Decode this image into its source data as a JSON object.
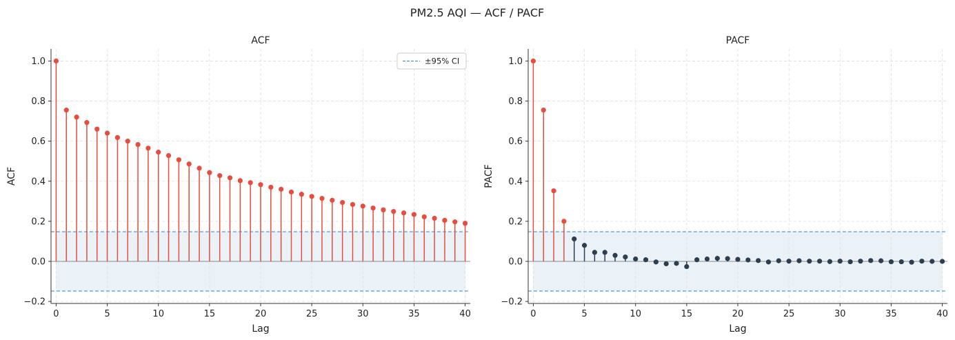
{
  "figure": {
    "suptitle": "PM2.5 AQI — ACF / PACF"
  },
  "colors": {
    "significant": "#e74c3c",
    "insignificant": "#2c3e50",
    "ci_line": "#2e86c1",
    "ci_fill": "#d6e6ef",
    "grid": "#dddddd",
    "axis": "#333333"
  },
  "chart_data": [
    {
      "type": "stem",
      "title": "ACF",
      "xlabel": "Lag",
      "ylabel": "ACF",
      "xlim": [
        -0.5,
        40.5
      ],
      "ylim": [
        -0.21,
        1.06
      ],
      "xticks": [
        "0",
        "5",
        "10",
        "15",
        "20",
        "25",
        "30",
        "35",
        "40"
      ],
      "yticks": [
        "−0.2",
        "0.0",
        "0.2",
        "0.4",
        "0.6",
        "0.8",
        "1.0"
      ],
      "grid": true,
      "confidence_interval": 0.148,
      "legend": {
        "label": "±95% CI",
        "position": "top-right"
      },
      "x": [
        0,
        1,
        2,
        3,
        4,
        5,
        6,
        7,
        8,
        9,
        10,
        11,
        12,
        13,
        14,
        15,
        16,
        17,
        18,
        19,
        20,
        21,
        22,
        23,
        24,
        25,
        26,
        27,
        28,
        29,
        30,
        31,
        32,
        33,
        34,
        35,
        36,
        37,
        38,
        39,
        40
      ],
      "values": [
        1.0,
        0.755,
        0.72,
        0.693,
        0.66,
        0.64,
        0.618,
        0.6,
        0.583,
        0.565,
        0.545,
        0.528,
        0.507,
        0.486,
        0.465,
        0.443,
        0.428,
        0.417,
        0.403,
        0.393,
        0.383,
        0.37,
        0.36,
        0.346,
        0.335,
        0.324,
        0.314,
        0.305,
        0.294,
        0.284,
        0.276,
        0.266,
        0.257,
        0.249,
        0.242,
        0.234,
        0.222,
        0.215,
        0.205,
        0.197,
        0.19
      ]
    },
    {
      "type": "stem",
      "title": "PACF",
      "xlabel": "Lag",
      "ylabel": "PACF",
      "xlim": [
        -0.5,
        40.5
      ],
      "ylim": [
        -0.21,
        1.06
      ],
      "xticks": [
        "0",
        "5",
        "10",
        "15",
        "20",
        "25",
        "30",
        "35",
        "40"
      ],
      "yticks": [
        "−0.2",
        "0.0",
        "0.2",
        "0.4",
        "0.6",
        "0.8",
        "1.0"
      ],
      "grid": true,
      "confidence_interval": 0.148,
      "x": [
        0,
        1,
        2,
        3,
        4,
        5,
        6,
        7,
        8,
        9,
        10,
        11,
        12,
        13,
        14,
        15,
        16,
        17,
        18,
        19,
        20,
        21,
        22,
        23,
        24,
        25,
        26,
        27,
        28,
        29,
        30,
        31,
        32,
        33,
        34,
        35,
        36,
        37,
        38,
        39,
        40
      ],
      "values": [
        1.0,
        0.755,
        0.352,
        0.2,
        0.112,
        0.08,
        0.045,
        0.045,
        0.03,
        0.022,
        0.012,
        0.008,
        -0.003,
        -0.012,
        -0.01,
        -0.026,
        0.008,
        0.012,
        0.015,
        0.014,
        0.01,
        0.007,
        0.004,
        -0.003,
        0.003,
        0.001,
        0.003,
        0.001,
        0.001,
        -0.001,
        0.001,
        -0.002,
        0.001,
        0.004,
        0.003,
        -0.002,
        -0.002,
        -0.004,
        0.001,
        0.0,
        0.0
      ]
    }
  ]
}
